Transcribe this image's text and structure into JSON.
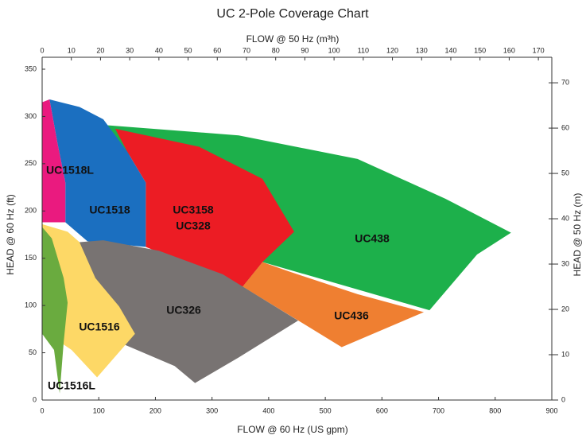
{
  "chart_data": {
    "type": "region",
    "title": "UC 2-Pole Coverage Chart",
    "xlabel": "FLOW @ 60 Hz (US gpm)",
    "x2label": "FLOW @ 50 Hz (m³h)",
    "ylabel": "HEAD @ 60 Hz (ft)",
    "y2label": "HEAD @ 50 Hz (m)",
    "xlim": [
      0,
      900
    ],
    "xticks": [
      0,
      100,
      200,
      300,
      400,
      500,
      600,
      700,
      800,
      900
    ],
    "x2lim": [
      0,
      174.6
    ],
    "x2ticks": [
      0,
      10,
      20,
      30,
      40,
      50,
      60,
      70,
      80,
      90,
      100,
      110,
      120,
      130,
      140,
      150,
      160,
      170
    ],
    "ylim": [
      0,
      350
    ],
    "yticks": [
      0,
      50,
      100,
      150,
      200,
      250,
      300,
      350
    ],
    "y2lim": [
      0,
      73
    ],
    "y2ticks": [
      0,
      10,
      20,
      30,
      40,
      50,
      60,
      70
    ],
    "series": [
      {
        "labels": [
          "UC438"
        ],
        "color": "#1db04b",
        "x": [
          108,
          347,
          557,
          712,
          828,
          768,
          684,
          389,
          354
        ],
        "y": [
          291,
          280,
          255,
          213,
          177,
          154,
          95,
          146,
          120
        ]
      },
      {
        "labels": [
          "UC436"
        ],
        "color": "#ef7f31",
        "x": [
          389,
          354,
          529,
          674,
          557,
          431
        ],
        "y": [
          146,
          120,
          56,
          93,
          112,
          137
        ]
      },
      {
        "labels": [
          "UC3158",
          "UC328"
        ],
        "color": "#ec1c24",
        "x": [
          129,
          277,
          389,
          445,
          389,
          354,
          183,
          183,
          150
        ],
        "y": [
          287,
          268,
          234,
          178,
          146,
          120,
          162,
          230,
          263
        ]
      },
      {
        "labels": [
          "UC1518"
        ],
        "color": "#1b6fc0",
        "x": [
          13,
          66,
          108,
          150,
          183,
          183,
          80,
          41,
          41,
          27
        ],
        "y": [
          318,
          310,
          297,
          263,
          230,
          162,
          168,
          188,
          230,
          272
        ]
      },
      {
        "labels": [
          "UC1518L"
        ],
        "color": "#ea1a7f",
        "x": [
          0,
          13,
          27,
          41,
          41,
          0
        ],
        "y": [
          315,
          318,
          272,
          230,
          188,
          188
        ]
      },
      {
        "labels": [
          "UC326"
        ],
        "color": "#787372",
        "x": [
          66,
          108,
          206,
          319,
          452,
          347,
          270,
          234,
          136,
          94,
          59
        ],
        "y": [
          167,
          169,
          158,
          133,
          84,
          45,
          18,
          36,
          61,
          87,
          154
        ]
      },
      {
        "labels": [
          "UC1516"
        ],
        "color": "#fdd866",
        "x": [
          0,
          45,
          66,
          94,
          136,
          164,
          97,
          52,
          10,
          0
        ],
        "y": [
          186,
          178,
          167,
          129,
          99,
          70,
          24,
          53,
          70,
          87
        ]
      },
      {
        "labels": [
          "UC1516L"
        ],
        "color": "#6aab3f",
        "x": [
          0,
          17,
          38,
          45,
          38,
          31,
          21,
          0
        ],
        "y": [
          183,
          171,
          129,
          103,
          61,
          7,
          53,
          70
        ]
      }
    ]
  }
}
